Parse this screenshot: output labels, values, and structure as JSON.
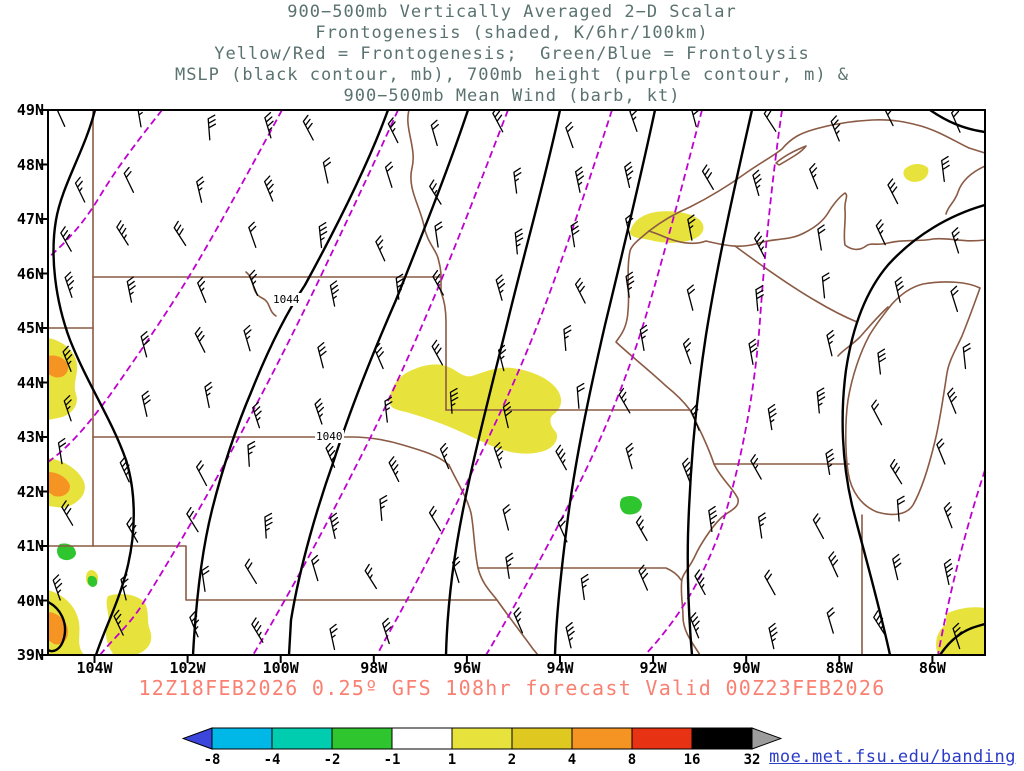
{
  "title": {
    "line1": "900−500mb Vertically Averaged 2−D Scalar",
    "line2": "Frontogenesis (shaded, K/6hr/100km)",
    "line3": "Yellow/Red = Frontogenesis;  Green/Blue = Frontolysis",
    "line4": "MSLP (black contour, mb), 700mb height (purple contour, m) &",
    "line5": "900−500mb Mean Wind (barb, kt)"
  },
  "caption": "12Z18FEB2026 0.25º GFS 108hr forecast Valid 00Z23FEB2026",
  "link": "moe.met.fsu.edu/banding",
  "axes": {
    "lat_ticks": [
      "49N",
      "48N",
      "47N",
      "46N",
      "45N",
      "44N",
      "43N",
      "42N",
      "41N",
      "40N",
      "39N"
    ],
    "lon_ticks": [
      "104W",
      "102W",
      "100W",
      "98W",
      "96W",
      "94W",
      "92W",
      "90W",
      "88W",
      "86W"
    ]
  },
  "contour_labels": [
    "1044",
    "1040"
  ],
  "colorbar": {
    "labels": [
      "-8",
      "-4",
      "-2",
      "-1",
      "1",
      "2",
      "4",
      "8",
      "16",
      "32"
    ],
    "segments": [
      "#00b8e8",
      "#00cdb0",
      "#2ec52e",
      "#ffffff",
      "#e8e33c",
      "#dfc81f",
      "#f59423",
      "#e83214",
      "#000000"
    ],
    "arrow_left": "#3c46dc",
    "arrow_right": "#9c9c9c"
  },
  "palette": {
    "title_text": "#5a7270",
    "caption_text": "#fa8072",
    "link_text": "#2b3cc8",
    "state_border": "#8a5a44",
    "mslp_contour": "#000000",
    "height_contour": "#c000d0",
    "fronto_yellow": "#e8e33c",
    "fronto_orange": "#f59423",
    "frontolysis_green": "#2ec52e",
    "barb": "#000000",
    "axis_text": "#000000"
  },
  "chart_data": {
    "type": "heatmap",
    "title": "900−500mb Vertically Averaged 2−D Scalar Frontogenesis",
    "shaded_field": {
      "name": "frontogenesis",
      "units": "K/6hr/100km",
      "positive_meaning": "Yellow/Red = Frontogenesis",
      "negative_meaning": "Green/Blue = Frontolysis"
    },
    "colorbar_levels": [
      -8,
      -4,
      -2,
      -1,
      1,
      2,
      4,
      8,
      16,
      32
    ],
    "colorbar_colors": [
      "#3c46dc",
      "#00b8e8",
      "#00cdb0",
      "#2ec52e",
      "#ffffff",
      "#e8e33c",
      "#dfc81f",
      "#f59423",
      "#e83214",
      "#000000",
      "#9c9c9c"
    ],
    "overlays": [
      {
        "field": "MSLP",
        "style": "black contour",
        "units": "mb",
        "labeled_contours": [
          1044,
          1040
        ]
      },
      {
        "field": "700mb height",
        "style": "purple contour",
        "units": "m"
      },
      {
        "field": "900−500mb mean wind",
        "style": "barb",
        "units": "kt"
      }
    ],
    "x_axis": {
      "label": "longitude",
      "ticks": [
        "104W",
        "102W",
        "100W",
        "98W",
        "96W",
        "94W",
        "92W",
        "90W",
        "88W",
        "86W"
      ]
    },
    "y_axis": {
      "label": "latitude",
      "ticks": [
        "49N",
        "48N",
        "47N",
        "46N",
        "45N",
        "44N",
        "43N",
        "42N",
        "41N",
        "40N",
        "39N"
      ]
    },
    "model": "GFS",
    "resolution": "0.25º",
    "init_time": "12Z18FEB2026",
    "forecast_hour": "108hr",
    "valid_time": "00Z23FEB2026",
    "shaded_features": [
      {
        "value": "1–2",
        "area": "central South Dakota / NE Nebraska / NW Iowa"
      },
      {
        "value": "1–2 with 2–8 cores",
        "area": "western map edge near 104W, 39N–45N"
      },
      {
        "value": "1–2",
        "area": "NE Minnesota near 92W 47.3N"
      },
      {
        "value": "1–2",
        "area": "far NE corner and SE corner of map"
      },
      {
        "value": "-1 to -2 frontolysis",
        "area": "small spots near 92.2W 42N and west edge 41N–42N"
      }
    ]
  }
}
